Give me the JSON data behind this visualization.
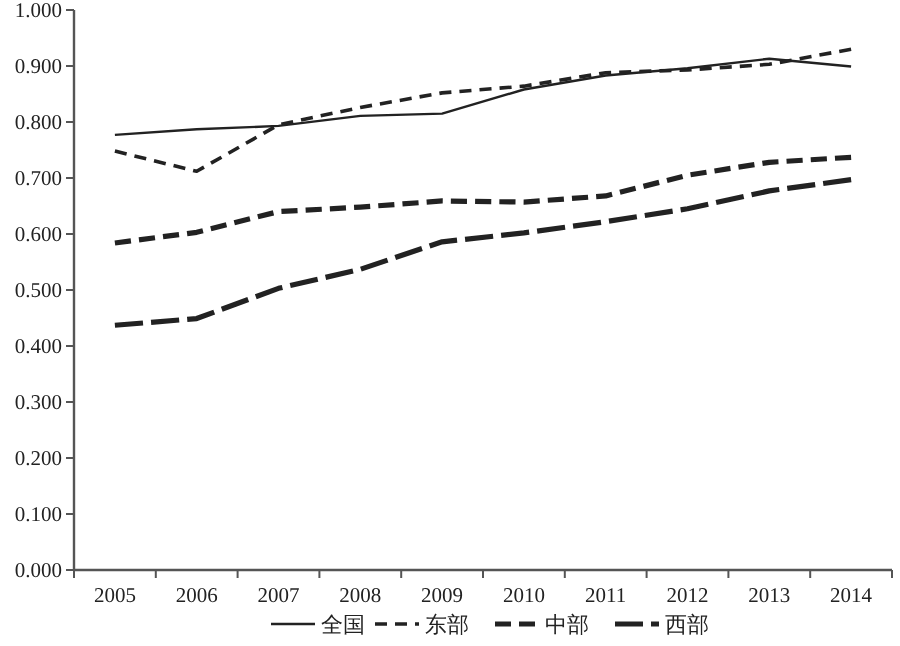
{
  "chart_data": {
    "type": "line",
    "categories": [
      "2005",
      "2006",
      "2007",
      "2008",
      "2009",
      "2010",
      "2011",
      "2012",
      "2013",
      "2014"
    ],
    "ylim": [
      0,
      1
    ],
    "yticks": [
      {
        "value": 0,
        "label": "0.000"
      },
      {
        "value": 0.1,
        "label": "0.100"
      },
      {
        "value": 0.2,
        "label": "0.200"
      },
      {
        "value": 0.3,
        "label": "0.300"
      },
      {
        "value": 0.4,
        "label": "0.400"
      },
      {
        "value": 0.5,
        "label": "0.500"
      },
      {
        "value": 0.6,
        "label": "0.600"
      },
      {
        "value": 0.7,
        "label": "0.700"
      },
      {
        "value": 0.8,
        "label": "0.800"
      },
      {
        "value": 0.9,
        "label": "0.900"
      },
      {
        "value": 1,
        "label": "1.000"
      }
    ],
    "grid": false,
    "legend": "bottom",
    "marker": "none",
    "series": [
      {
        "name": "全国",
        "color": "#222222",
        "line_style": "solid",
        "values": [
          0.777,
          0.787,
          0.793,
          0.811,
          0.815,
          0.858,
          0.883,
          0.896,
          0.913,
          0.899
        ]
      },
      {
        "name": "东部",
        "color": "#222222",
        "line_style": "dashed",
        "values": [
          0.748,
          0.712,
          0.795,
          0.826,
          0.852,
          0.864,
          0.888,
          0.893,
          0.903,
          0.93
        ]
      },
      {
        "name": "中部",
        "color": "#222222",
        "line_style": "dashed",
        "values": [
          0.584,
          0.603,
          0.64,
          0.648,
          0.659,
          0.657,
          0.668,
          0.705,
          0.728,
          0.737
        ]
      },
      {
        "name": "西部",
        "color": "#222222",
        "line_style": "dashed",
        "values": [
          0.437,
          0.449,
          0.503,
          0.537,
          0.586,
          0.602,
          0.622,
          0.645,
          0.677,
          0.697
        ]
      }
    ]
  }
}
